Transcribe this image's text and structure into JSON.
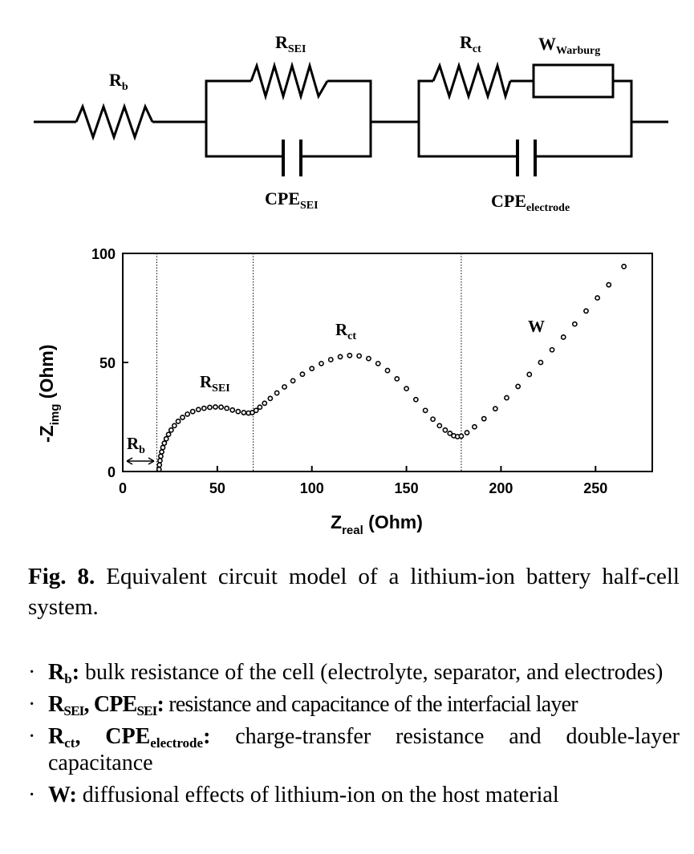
{
  "circuit": {
    "rb_main": "R",
    "rb_sub": "b",
    "rsei_main": "R",
    "rsei_sub": "SEI",
    "cpesei_main": "CPE",
    "cpesei_sub": "SEI",
    "rct_main": "R",
    "rct_sub": "ct",
    "w_main": "W",
    "w_sub": "Warburg",
    "cpeel_main": "CPE",
    "cpeel_sub": "electrode"
  },
  "chart_data": {
    "type": "scatter",
    "x_label_main": "Z",
    "x_label_sub": "real",
    "x_label_unit": " (Ohm)",
    "y_label_main": "-Z",
    "y_label_sub": "img",
    "y_label_unit": " (Ohm)",
    "xlim": [
      0,
      280
    ],
    "ylim": [
      0,
      100
    ],
    "xticks": [
      "0",
      "50",
      "100",
      "150",
      "200",
      "250"
    ],
    "yticks": [
      "0",
      "50",
      "100"
    ],
    "vlines_x": [
      18,
      69,
      179
    ],
    "annotations": {
      "rb_main": "R",
      "rb_sub": "b",
      "rsei_main": "R",
      "rsei_sub": "SEI",
      "rct_main": "R",
      "rct_sub": "ct",
      "w": "W"
    },
    "series": [
      {
        "x": [
          19.2,
          19.4,
          19.7,
          20.1,
          20.6,
          21.2,
          22.0,
          23.0,
          24.2,
          25.6,
          27.3,
          29.3,
          31.6,
          34.2,
          37.0,
          40.0,
          43.0,
          46.0,
          49.0,
          52.0,
          55.0,
          58.0,
          61.0,
          64.0,
          66.5,
          68.5,
          70.5,
          72.5,
          75.0,
          78.0,
          81.5,
          85.5,
          90.0,
          95.0,
          100.0,
          105.0,
          110.0,
          115.0,
          120.0,
          125.0,
          130.0,
          135.0,
          140.0,
          145.0,
          150.0,
          155.0,
          160.0,
          164.0,
          167.5,
          170.5,
          173.0,
          175.0,
          177.0,
          179.0,
          182.0,
          186.0,
          191.0,
          197.0,
          203.0,
          209.0,
          215.0,
          221.0,
          227.0,
          233.0,
          239.0,
          245.0,
          251.0,
          257.0,
          265.0
        ],
        "y": [
          1.0,
          3.0,
          5.0,
          7.0,
          9.0,
          11.0,
          13.0,
          15.0,
          17.0,
          19.0,
          21.0,
          23.0,
          24.8,
          26.3,
          27.5,
          28.4,
          29.0,
          29.4,
          29.6,
          29.5,
          29.0,
          28.2,
          27.5,
          27.0,
          26.8,
          27.0,
          28.0,
          29.5,
          31.3,
          33.5,
          36.0,
          38.8,
          41.6,
          44.6,
          47.2,
          49.5,
          51.3,
          52.6,
          53.2,
          53.0,
          51.8,
          49.5,
          46.3,
          42.5,
          38.0,
          33.0,
          28.0,
          24.0,
          21.0,
          19.0,
          17.5,
          16.4,
          16.0,
          16.2,
          17.8,
          20.5,
          24.2,
          28.8,
          33.8,
          39.0,
          44.5,
          50.0,
          55.8,
          61.6,
          67.6,
          73.6,
          79.6,
          85.6,
          94.0
        ]
      }
    ]
  },
  "caption": {
    "label": "Fig. 8.",
    "text": " Equivalent circuit model of a lithium-ion battery half-cell system."
  },
  "definitions": [
    {
      "bullet": "·",
      "term_main": "R",
      "term_sub": "b",
      "term_end": ":",
      "text": " bulk resistance of the cell (electrolyte, separator, and electrodes)"
    },
    {
      "bullet": "·",
      "t1_main": "R",
      "t1_sub": "SEI",
      "sep": ", ",
      "t2_main": "CPE",
      "t2_sub": "SEI",
      "term_end": ":",
      "text": " resistance and capacitance of the interfacial layer"
    },
    {
      "bullet": "·",
      "t1_main": "R",
      "t1_sub": "ct",
      "sep": ", ",
      "t2_main": "CPE",
      "t2_sub": "electrode",
      "term_end": ":",
      "text": " charge-transfer resistance and double-layer capacitance"
    },
    {
      "bullet": "·",
      "term_main": "W",
      "term_end": ":",
      "text": " diffusional effects of lithium-ion on the host material"
    }
  ]
}
